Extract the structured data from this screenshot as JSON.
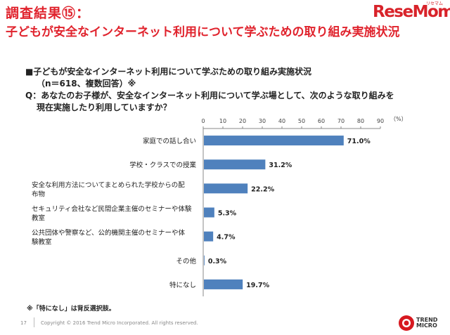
{
  "header": {
    "title_line1": "調査結果⑮：",
    "title_line2": "子どもが安全なインターネット利用について学ぶための取り組み実施状況",
    "logo": "ReseMom",
    "logo_small": "リセマム"
  },
  "question": {
    "heading": "■子どもが安全なインターネット利用について学ぶための取り組み実施状況",
    "sample": "（n＝618、複数回答）※",
    "q_line1": "Q：あなたのお子様が、安全なインターネット利用について学ぶ場として、次のような取り組みを",
    "q_line2": "現在実施したり利用していますか？"
  },
  "chart_data": {
    "type": "bar",
    "orientation": "horizontal",
    "unit_label": "（%）",
    "xlim": [
      0,
      90
    ],
    "xticks": [
      0,
      10,
      20,
      30,
      40,
      50,
      60,
      70,
      80,
      90
    ],
    "categories": [
      [
        "家庭での話し合い"
      ],
      [
        "学校・クラスでの授業"
      ],
      [
        "安全な利用方法についてまとめられた学校からの配",
        "布物"
      ],
      [
        "セキュリティ会社など民間企業主催のセミナーや体験",
        "教室"
      ],
      [
        "公共団体や警察など、公的機関主催のセミナーや体",
        "験教室"
      ],
      [
        "その他"
      ],
      [
        "特になし"
      ]
    ],
    "values": [
      71.0,
      31.2,
      22.2,
      5.3,
      4.7,
      0.3,
      19.7
    ],
    "value_labels": [
      "71.0%",
      "31.2%",
      "22.2%",
      "5.3%",
      "4.7%",
      "0.3%",
      "19.7%"
    ],
    "bar_color": "#4f81bd",
    "grid": false
  },
  "footer": {
    "note": "※「特になし」は背反選択肢。",
    "page": "17",
    "copyright": "Copyright © 2016 Trend Micro Incorporated. All rights reserved.",
    "brand_line1": "TREND",
    "brand_line2": "MICRO"
  }
}
